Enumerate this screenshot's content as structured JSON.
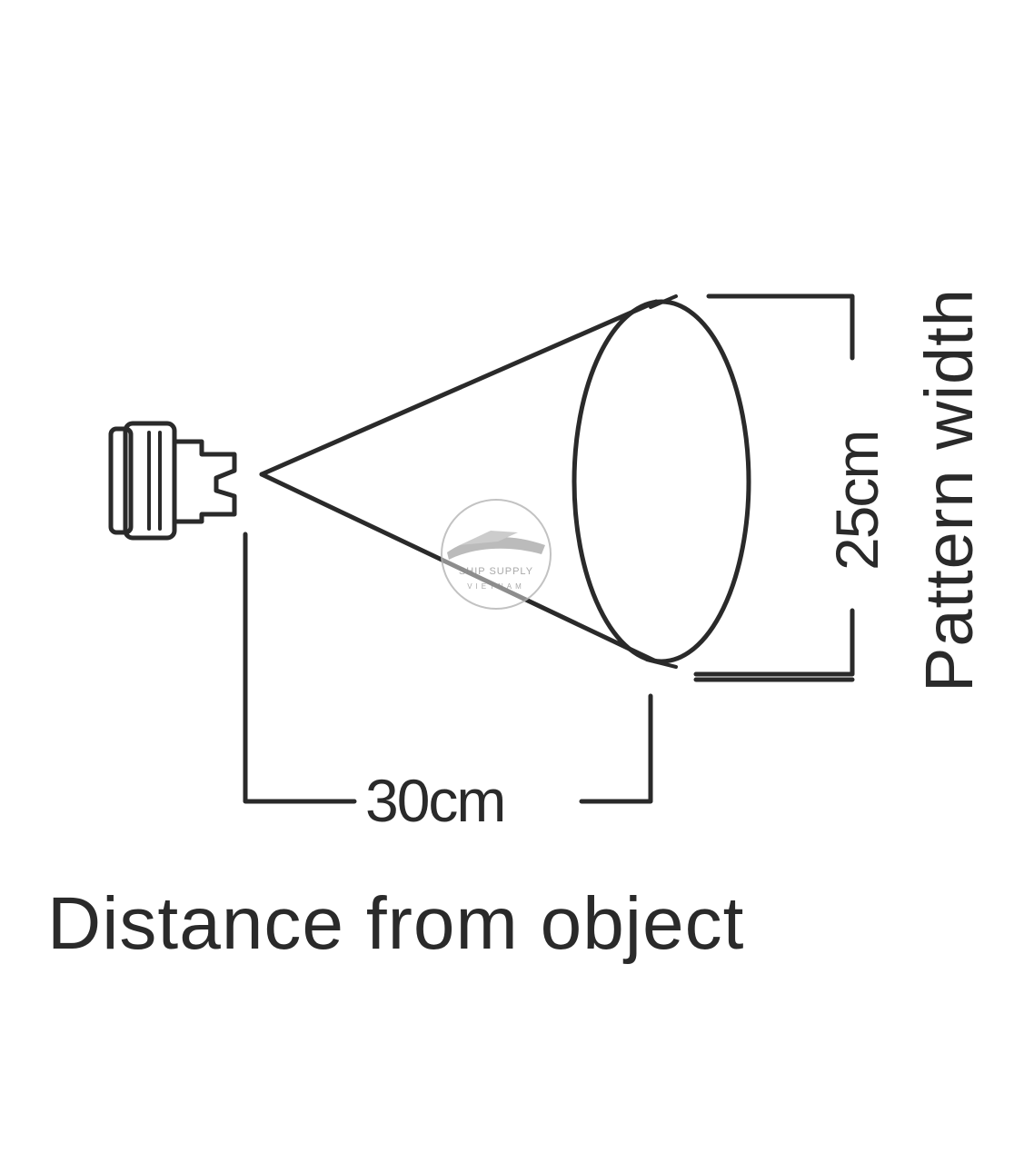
{
  "diagram": {
    "distance_label": "30cm",
    "width_label": "25cm",
    "width_caption": "Pattern width",
    "distance_caption": "Distance from object"
  },
  "watermark": {
    "line1": "SHIP SUPPLY",
    "line2": "VIETNAM"
  },
  "colors": {
    "ink": "#2a2a2a",
    "watermark": "#9a9a9a",
    "background": "#ffffff"
  },
  "icons": {
    "nozzle": "spray-nozzle-icon",
    "watermark_logo": "ship-logo-icon"
  }
}
